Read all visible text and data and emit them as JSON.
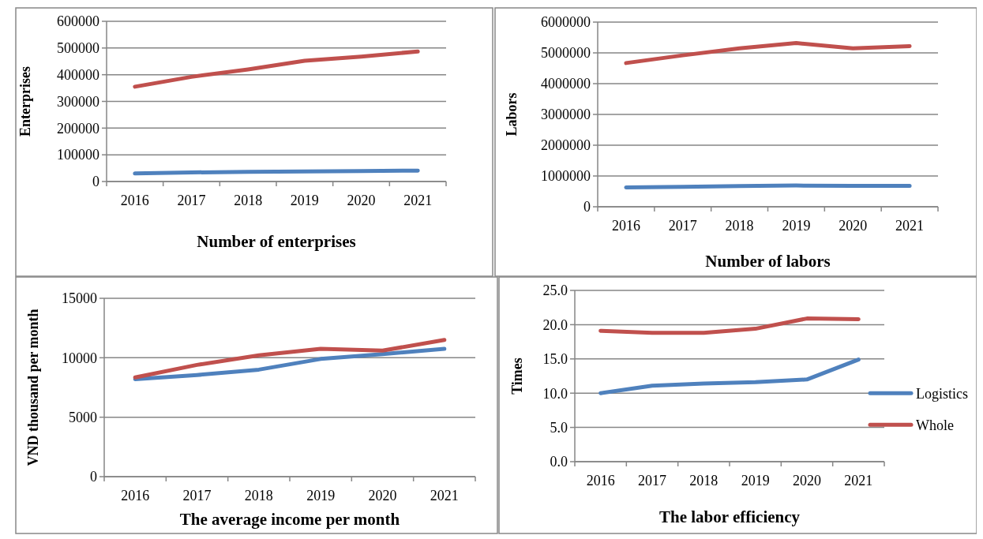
{
  "chart_data": [
    {
      "type": "line",
      "title": "Number of enterprises",
      "ylabel": "Enterprises",
      "categories": [
        "2016",
        "2017",
        "2018",
        "2019",
        "2020",
        "2021"
      ],
      "ylim": [
        0,
        600000
      ],
      "yticks": [
        0,
        100000,
        200000,
        300000,
        400000,
        500000,
        600000
      ],
      "grid": "y",
      "legend": false,
      "series": [
        {
          "color": "#4f81bd",
          "values": [
            30000,
            34000,
            36000,
            38000,
            39000,
            41000
          ]
        },
        {
          "color": "#c0504d",
          "values": [
            355000,
            392000,
            420000,
            452000,
            468000,
            487000
          ]
        }
      ]
    },
    {
      "type": "line",
      "title": "Number of labors",
      "ylabel": "Labors",
      "categories": [
        "2016",
        "2017",
        "2018",
        "2019",
        "2020",
        "2021"
      ],
      "ylim": [
        0,
        6000000
      ],
      "yticks": [
        0,
        1000000,
        2000000,
        3000000,
        4000000,
        5000000,
        6000000
      ],
      "grid": "y",
      "legend": false,
      "series": [
        {
          "color": "#4f81bd",
          "values": [
            630000,
            650000,
            670000,
            690000,
            680000,
            680000
          ]
        },
        {
          "color": "#c0504d",
          "values": [
            4670000,
            4920000,
            5150000,
            5320000,
            5150000,
            5220000
          ]
        }
      ]
    },
    {
      "type": "line",
      "title": "The average income per month",
      "ylabel": "VND thousand per month",
      "categories": [
        "2016",
        "2017",
        "2018",
        "2019",
        "2020",
        "2021"
      ],
      "ylim": [
        0,
        15000
      ],
      "yticks": [
        0,
        5000,
        10000,
        15000
      ],
      "grid": "y",
      "legend": false,
      "series": [
        {
          "color": "#4f81bd",
          "values": [
            8200,
            8550,
            9000,
            9900,
            10300,
            10750
          ]
        },
        {
          "color": "#c0504d",
          "values": [
            8350,
            9400,
            10200,
            10750,
            10600,
            11500
          ]
        }
      ]
    },
    {
      "type": "line",
      "title": "The labor efficiency",
      "ylabel": "Times",
      "categories": [
        "2016",
        "2017",
        "2018",
        "2019",
        "2020",
        "2021"
      ],
      "ylim": [
        0,
        25
      ],
      "yticks": [
        {
          "value": 0,
          "label": "0.0"
        },
        {
          "value": 5,
          "label": "5.0"
        },
        {
          "value": 10,
          "label": "10.0"
        },
        {
          "value": 15,
          "label": "15.0"
        },
        {
          "value": 20,
          "label": "20.0"
        },
        {
          "value": 25,
          "label": "25.0"
        }
      ],
      "grid": "y",
      "legend": "right",
      "series": [
        {
          "name": "Logistics",
          "color": "#4f81bd",
          "values": [
            10.0,
            11.1,
            11.4,
            11.6,
            12.0,
            14.9
          ]
        },
        {
          "name": "Whole",
          "color": "#c0504d",
          "values": [
            19.1,
            18.8,
            18.8,
            19.4,
            20.9,
            20.8
          ]
        }
      ]
    }
  ]
}
